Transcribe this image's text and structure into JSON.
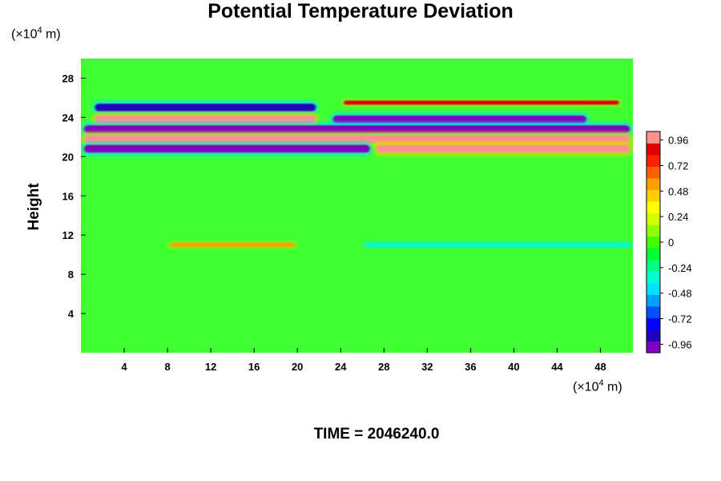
{
  "chart_data": {
    "type": "heatmap",
    "title": "Potential Temperature Deviation",
    "ylabel": "Height",
    "xlabel": "",
    "x_unit_prefix": "(×10",
    "x_unit_exp": "4",
    "x_unit_suffix": " m)",
    "y_unit_prefix": "(×10",
    "y_unit_exp": "4",
    "y_unit_suffix": " m)",
    "xlim": [
      0,
      51
    ],
    "ylim": [
      0,
      30
    ],
    "x_ticks": [
      "4",
      "8",
      "12",
      "16",
      "20",
      "24",
      "28",
      "32",
      "36",
      "40",
      "44",
      "48"
    ],
    "y_ticks": [
      "4",
      "8",
      "12",
      "16",
      "20",
      "24",
      "28"
    ],
    "colorbar": {
      "range": [
        -1.04,
        1.04
      ],
      "ticks": [
        "0.96",
        "0.72",
        "0.48",
        "0.24",
        "0",
        "-0.24",
        "-0.48",
        "-0.72",
        "-0.96"
      ],
      "colors": [
        "#8000c0",
        "#2000c0",
        "#0000ff",
        "#0050ff",
        "#00a0ff",
        "#00e0ff",
        "#00ffd0",
        "#00ff80",
        "#00ff30",
        "#40ff00",
        "#90ff00",
        "#d0ff00",
        "#ffff00",
        "#ffd000",
        "#ffa000",
        "#ff6000",
        "#ff2000",
        "#e00000",
        "#ff9090"
      ]
    },
    "background_value": 0,
    "features": [
      {
        "y": 25,
        "x_range": [
          1,
          22
        ],
        "value": -0.9
      },
      {
        "y": 25.5,
        "x_range": [
          24,
          50
        ],
        "value": 0.85
      },
      {
        "y": 23.8,
        "x_range": [
          1,
          22
        ],
        "value": 1.0
      },
      {
        "y": 23.8,
        "x_range": [
          23,
          47
        ],
        "value": -1.0
      },
      {
        "y": 22.8,
        "x_range": [
          0,
          51
        ],
        "value": -1.0
      },
      {
        "y": 21.8,
        "x_range": [
          0,
          51
        ],
        "value": 1.0
      },
      {
        "y": 20.8,
        "x_range": [
          0,
          27
        ],
        "value": -1.0
      },
      {
        "y": 20.8,
        "x_range": [
          27,
          51
        ],
        "value": 1.0
      },
      {
        "y": 11,
        "x_range": [
          8,
          20
        ],
        "value": 0.5
      },
      {
        "y": 11,
        "x_range": [
          26,
          51
        ],
        "value": -0.3
      }
    ]
  },
  "footer": "TIME = 2046240.0"
}
